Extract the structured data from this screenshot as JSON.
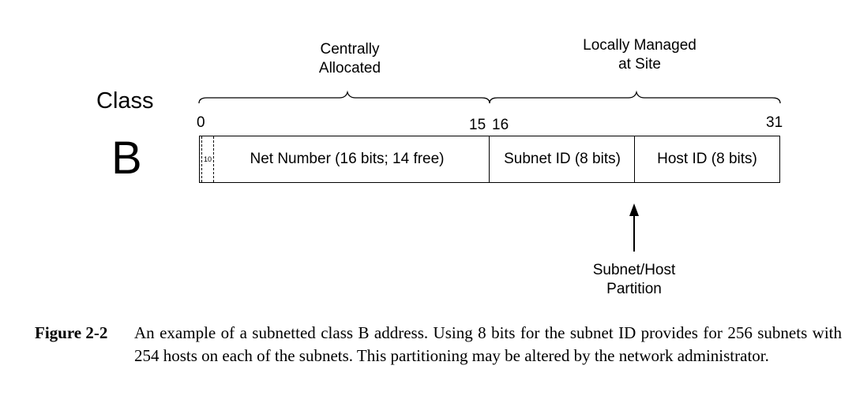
{
  "diagram": {
    "class_word": "Class",
    "class_letter": "B",
    "brace_labels": {
      "central": "Centrally\nAllocated",
      "local": "Locally Managed\nat Site"
    },
    "bit_positions": {
      "start": "0",
      "end_net": "15",
      "start_subnet": "16",
      "end": "31"
    },
    "fields": {
      "class_bits": "10",
      "net": "Net Number (16 bits; 14 free)",
      "subnet": "Subnet ID (8 bits)",
      "host": "Host ID (8 bits)"
    },
    "partition_label": "Subnet/Host\nPartition"
  },
  "caption": {
    "label": "Figure 2-2",
    "text": "An example of a subnetted class B address. Using 8 bits for the subnet ID provides for 256 subnets with 254 hosts on each of the subnets. This partitioning may be altered by the network administrator."
  }
}
